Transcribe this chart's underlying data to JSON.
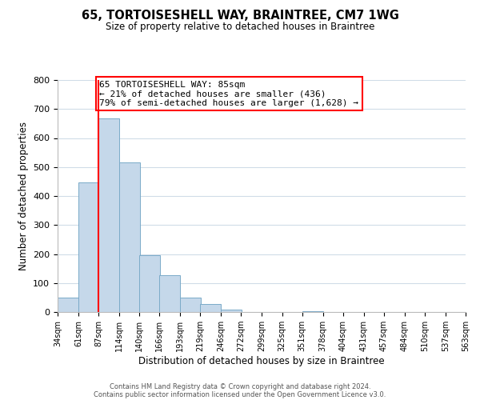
{
  "title": "65, TORTOISESHELL WAY, BRAINTREE, CM7 1WG",
  "subtitle": "Size of property relative to detached houses in Braintree",
  "xlabel": "Distribution of detached houses by size in Braintree",
  "ylabel": "Number of detached properties",
  "bin_edges": [
    34,
    61,
    87,
    114,
    140,
    166,
    193,
    219,
    246,
    272,
    299,
    325,
    351,
    378,
    404,
    431,
    457,
    484,
    510,
    537,
    563
  ],
  "bin_labels": [
    "34sqm",
    "61sqm",
    "87sqm",
    "114sqm",
    "140sqm",
    "166sqm",
    "193sqm",
    "219sqm",
    "246sqm",
    "272sqm",
    "299sqm",
    "325sqm",
    "351sqm",
    "378sqm",
    "404sqm",
    "431sqm",
    "457sqm",
    "484sqm",
    "510sqm",
    "537sqm",
    "563sqm"
  ],
  "counts": [
    50,
    448,
    667,
    515,
    197,
    127,
    49,
    27,
    8,
    0,
    0,
    0,
    3,
    0,
    0,
    0,
    0,
    0,
    0,
    0
  ],
  "bar_color": "#c5d8ea",
  "bar_edge_color": "#7aaac8",
  "property_line_x": 87,
  "property_line_color": "red",
  "ylim": [
    0,
    800
  ],
  "yticks": [
    0,
    100,
    200,
    300,
    400,
    500,
    600,
    700,
    800
  ],
  "annotation_box_text": "65 TORTOISESHELL WAY: 85sqm\n← 21% of detached houses are smaller (436)\n79% of semi-detached houses are larger (1,628) →",
  "footer_line1": "Contains HM Land Registry data © Crown copyright and database right 2024.",
  "footer_line2": "Contains public sector information licensed under the Open Government Licence v3.0.",
  "background_color": "#ffffff",
  "grid_color": "#d0dce8"
}
